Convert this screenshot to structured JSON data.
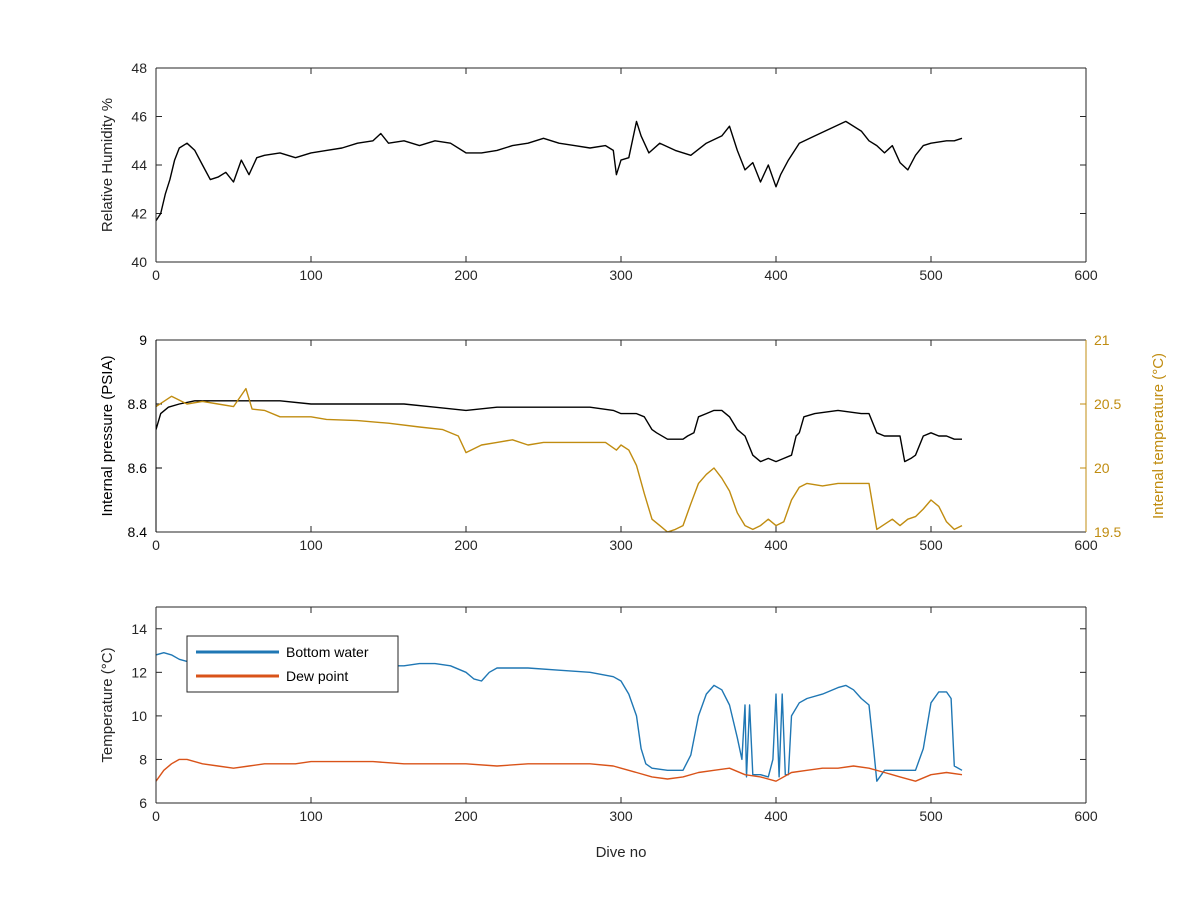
{
  "chart_data": [
    {
      "type": "line",
      "xlabel": "",
      "ylabel": "Relative Humidity %",
      "xlim": [
        0,
        600
      ],
      "ylim": [
        40,
        48
      ],
      "xticks": [
        "0",
        "100",
        "200",
        "300",
        "400",
        "500",
        "600"
      ],
      "yticks": [
        "40",
        "42",
        "44",
        "46",
        "48"
      ],
      "colors": {
        "series": "#000000"
      },
      "series": [
        {
          "x": [
            0,
            3,
            6,
            9,
            12,
            15,
            20,
            25,
            30,
            35,
            40,
            45,
            50,
            55,
            60,
            65,
            70,
            80,
            90,
            100,
            110,
            120,
            130,
            140,
            145,
            150,
            160,
            170,
            180,
            190,
            200,
            210,
            220,
            230,
            240,
            250,
            260,
            270,
            280,
            290,
            295,
            297,
            300,
            305,
            310,
            313,
            318,
            325,
            335,
            345,
            355,
            365,
            370,
            375,
            380,
            385,
            390,
            395,
            400,
            403,
            408,
            415,
            425,
            435,
            445,
            455,
            460,
            465,
            470,
            475,
            480,
            485,
            490,
            495,
            500,
            510,
            515,
            520
          ],
          "y": [
            41.7,
            42.0,
            42.8,
            43.4,
            44.2,
            44.7,
            44.9,
            44.6,
            44.0,
            43.4,
            43.5,
            43.7,
            43.3,
            44.2,
            43.6,
            44.3,
            44.4,
            44.5,
            44.3,
            44.5,
            44.6,
            44.7,
            44.9,
            45.0,
            45.3,
            44.9,
            45.0,
            44.8,
            45.0,
            44.9,
            44.5,
            44.5,
            44.6,
            44.8,
            44.9,
            45.1,
            44.9,
            44.8,
            44.7,
            44.8,
            44.6,
            43.6,
            44.2,
            44.3,
            45.8,
            45.2,
            44.5,
            44.9,
            44.6,
            44.4,
            44.9,
            45.2,
            45.6,
            44.6,
            43.8,
            44.1,
            43.3,
            44.0,
            43.1,
            43.6,
            44.2,
            44.9,
            45.2,
            45.5,
            45.8,
            45.4,
            45.0,
            44.8,
            44.5,
            44.8,
            44.1,
            43.8,
            44.4,
            44.8,
            44.9,
            45.0,
            45.0,
            45.1
          ]
        }
      ]
    },
    {
      "type": "line",
      "xlabel": "",
      "ylabel": "Internal pressure (PSIA)",
      "y2label": "Internal temperature (°C)",
      "xlim": [
        0,
        600
      ],
      "ylim": [
        8.4,
        9
      ],
      "y2lim": [
        19.5,
        21
      ],
      "xticks": [
        "0",
        "100",
        "200",
        "300",
        "400",
        "500",
        "600"
      ],
      "yticks": [
        "8.4",
        "8.6",
        "8.8",
        "9"
      ],
      "y2ticks": [
        "19.5",
        "20",
        "20.5",
        "21"
      ],
      "colors": {
        "left_axis": "#000000",
        "right_axis": "#c08c10",
        "pressure": "#000000",
        "temperature": "#c08c10"
      },
      "series": [
        {
          "axis": "left",
          "x": [
            0,
            3,
            8,
            15,
            25,
            40,
            60,
            80,
            100,
            120,
            140,
            160,
            180,
            200,
            220,
            240,
            260,
            280,
            295,
            300,
            305,
            310,
            315,
            320,
            323,
            330,
            335,
            340,
            343,
            347,
            350,
            355,
            360,
            365,
            370,
            375,
            380,
            385,
            390,
            395,
            400,
            405,
            410,
            413,
            415,
            418,
            425,
            440,
            455,
            460,
            465,
            470,
            475,
            480,
            483,
            487,
            490,
            495,
            500,
            505,
            510,
            515,
            520
          ],
          "y": [
            8.72,
            8.77,
            8.79,
            8.8,
            8.81,
            8.81,
            8.81,
            8.81,
            8.8,
            8.8,
            8.8,
            8.8,
            8.79,
            8.78,
            8.79,
            8.79,
            8.79,
            8.79,
            8.78,
            8.77,
            8.77,
            8.77,
            8.76,
            8.72,
            8.71,
            8.69,
            8.69,
            8.69,
            8.7,
            8.71,
            8.76,
            8.77,
            8.78,
            8.78,
            8.76,
            8.72,
            8.7,
            8.64,
            8.62,
            8.63,
            8.62,
            8.63,
            8.64,
            8.7,
            8.71,
            8.76,
            8.77,
            8.78,
            8.77,
            8.77,
            8.71,
            8.7,
            8.7,
            8.7,
            8.62,
            8.63,
            8.64,
            8.7,
            8.71,
            8.7,
            8.7,
            8.69,
            8.69
          ]
        },
        {
          "axis": "right",
          "x": [
            0,
            5,
            10,
            20,
            30,
            40,
            50,
            58,
            62,
            70,
            80,
            90,
            100,
            110,
            130,
            150,
            170,
            185,
            195,
            200,
            210,
            220,
            230,
            240,
            250,
            260,
            270,
            280,
            290,
            297,
            300,
            305,
            310,
            315,
            320,
            325,
            330,
            335,
            340,
            345,
            350,
            355,
            360,
            365,
            370,
            375,
            380,
            385,
            390,
            395,
            400,
            405,
            410,
            415,
            420,
            430,
            440,
            450,
            460,
            465,
            470,
            475,
            480,
            485,
            490,
            495,
            500,
            505,
            510,
            515,
            520
          ],
          "y": [
            20.48,
            20.52,
            20.56,
            20.5,
            20.52,
            20.5,
            20.48,
            20.62,
            20.46,
            20.45,
            20.4,
            20.4,
            20.4,
            20.38,
            20.37,
            20.35,
            20.32,
            20.3,
            20.25,
            20.12,
            20.18,
            20.2,
            20.22,
            20.18,
            20.2,
            20.2,
            20.2,
            20.2,
            20.2,
            20.14,
            20.18,
            20.14,
            20.02,
            19.8,
            19.6,
            19.55,
            19.5,
            19.52,
            19.55,
            19.72,
            19.88,
            19.95,
            20.0,
            19.92,
            19.82,
            19.65,
            19.55,
            19.52,
            19.55,
            19.6,
            19.55,
            19.58,
            19.75,
            19.85,
            19.88,
            19.86,
            19.88,
            19.88,
            19.88,
            19.52,
            19.56,
            19.6,
            19.55,
            19.6,
            19.62,
            19.68,
            19.75,
            19.7,
            19.58,
            19.52,
            19.55
          ]
        }
      ]
    },
    {
      "type": "line",
      "xlabel": "Dive no",
      "ylabel": "Temperature (°C)",
      "xlim": [
        0,
        600
      ],
      "ylim": [
        6,
        15
      ],
      "xticks": [
        "0",
        "100",
        "200",
        "300",
        "400",
        "500",
        "600"
      ],
      "yticks": [
        "6",
        "8",
        "10",
        "12",
        "14"
      ],
      "legend": {
        "placement": "top-left"
      },
      "colors": {
        "Bottom water": "#1f77b4",
        "Dew point": "#d95319"
      },
      "series": [
        {
          "name": "Bottom water",
          "x": [
            0,
            5,
            10,
            15,
            20,
            40,
            60,
            80,
            100,
            120,
            140,
            160,
            170,
            180,
            190,
            200,
            205,
            210,
            215,
            220,
            240,
            260,
            280,
            295,
            300,
            305,
            310,
            313,
            316,
            320,
            330,
            340,
            345,
            350,
            355,
            360,
            365,
            370,
            375,
            378,
            380,
            381,
            383,
            385,
            390,
            395,
            398,
            400,
            402,
            404,
            406,
            408,
            410,
            415,
            420,
            430,
            440,
            445,
            450,
            455,
            460,
            463,
            465,
            470,
            480,
            490,
            495,
            500,
            505,
            510,
            513,
            515,
            520
          ],
          "y": [
            12.8,
            12.9,
            12.8,
            12.6,
            12.5,
            12.5,
            12.4,
            12.4,
            12.3,
            12.3,
            12.3,
            12.3,
            12.4,
            12.4,
            12.3,
            12.0,
            11.7,
            11.6,
            12.0,
            12.2,
            12.2,
            12.1,
            12.0,
            11.8,
            11.6,
            11.0,
            10.0,
            8.5,
            7.8,
            7.6,
            7.5,
            7.5,
            8.2,
            10.0,
            11.0,
            11.4,
            11.2,
            10.5,
            9.0,
            8.0,
            10.5,
            7.2,
            10.5,
            7.3,
            7.3,
            7.2,
            8.0,
            11.0,
            7.2,
            11.0,
            7.3,
            7.3,
            10.0,
            10.6,
            10.8,
            11.0,
            11.3,
            11.4,
            11.2,
            10.8,
            10.5,
            8.5,
            7.0,
            7.5,
            7.5,
            7.5,
            8.5,
            10.6,
            11.1,
            11.1,
            10.8,
            7.7,
            7.5
          ]
        },
        {
          "name": "Dew point",
          "x": [
            0,
            5,
            10,
            15,
            20,
            30,
            40,
            50,
            60,
            70,
            80,
            90,
            100,
            120,
            140,
            160,
            180,
            200,
            220,
            240,
            260,
            280,
            295,
            300,
            310,
            320,
            330,
            340,
            350,
            360,
            370,
            380,
            390,
            400,
            410,
            420,
            430,
            440,
            450,
            460,
            470,
            480,
            490,
            500,
            510,
            520
          ],
          "y": [
            7.0,
            7.5,
            7.8,
            8.0,
            8.0,
            7.8,
            7.7,
            7.6,
            7.7,
            7.8,
            7.8,
            7.8,
            7.9,
            7.9,
            7.9,
            7.8,
            7.8,
            7.8,
            7.7,
            7.8,
            7.8,
            7.8,
            7.7,
            7.6,
            7.4,
            7.2,
            7.1,
            7.2,
            7.4,
            7.5,
            7.6,
            7.3,
            7.2,
            7.0,
            7.4,
            7.5,
            7.6,
            7.6,
            7.7,
            7.6,
            7.4,
            7.2,
            7.0,
            7.3,
            7.4,
            7.3
          ]
        }
      ]
    }
  ]
}
